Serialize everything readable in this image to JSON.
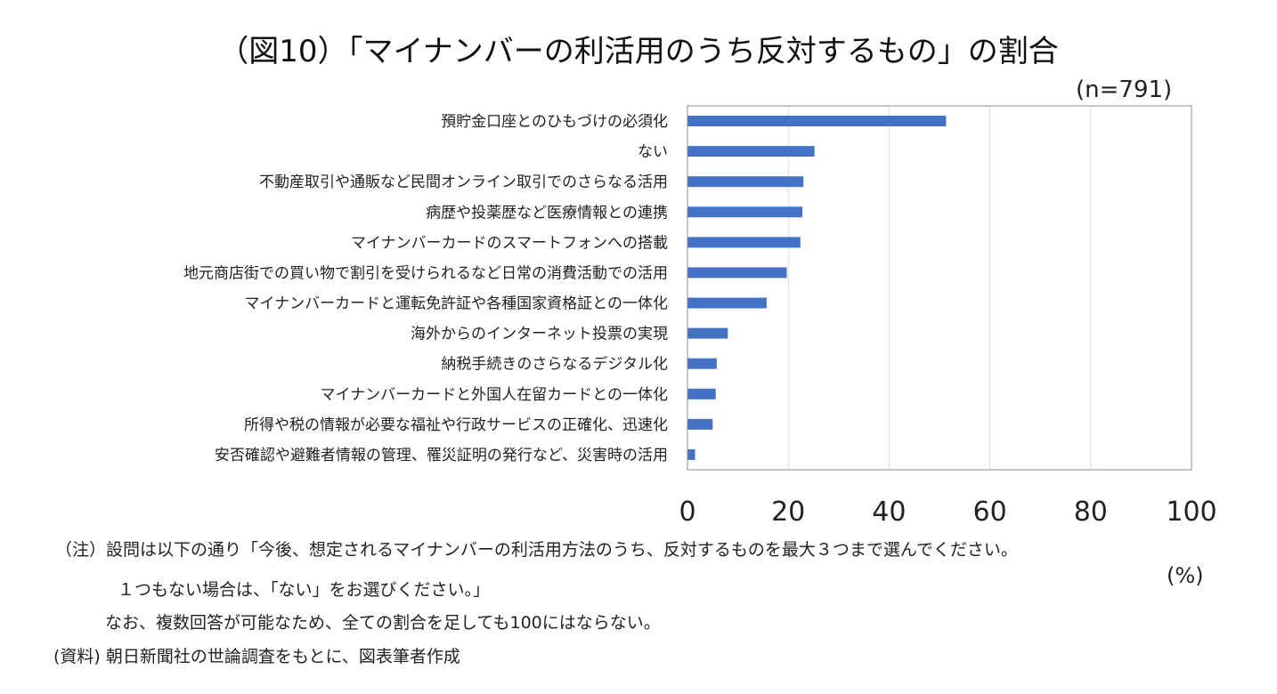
{
  "header": {
    "title": "（図10）「マイナンバーの利活用のうち反対するもの」の割合",
    "sample_size": "(n=791)"
  },
  "chart_data": {
    "type": "bar",
    "orientation": "horizontal",
    "categories": [
      "預貯金口座とのひもづけの必須化",
      "ない",
      "不動産取引や通販など民間オンライン取引でのさらなる活用",
      "病歴や投薬歴など医療情報との連携",
      "マイナンバーカードのスマートフォンへの搭載",
      "地元商店街での買い物で割引を受けられるなど日常の消費活動での活用",
      "マイナンバーカードと運転免許証や各種国家資格証との一体化",
      "海外からのインターネット投票の実現",
      "納税手続きのさらなるデジタル化",
      "マイナンバーカードと外国人在留カードとの一体化",
      "所得や税の情報が必要な福祉や行政サービスの正確化、迅速化",
      "安否確認や避難者情報の管理、罹災証明の発行など、災害時の活用"
    ],
    "values": [
      51.3,
      25.2,
      23.0,
      22.8,
      22.4,
      19.7,
      15.7,
      8.0,
      5.8,
      5.6,
      5.0,
      1.5
    ],
    "x_ticks": [
      "0",
      "20",
      "40",
      "60",
      "80",
      "100"
    ],
    "xlim": [
      0,
      100
    ],
    "xlabel": "(%)",
    "bar_color": "#4472c4",
    "grid": "vertical",
    "legend": "none"
  },
  "notes": [
    "（注）設問は以下の通り「今後、想定されるマイナンバーの利活用方法のうち、反対するものを最大３つまで選んでください。",
    "１つもない場合は、「ない」をお選びください。」",
    "なお、複数回答が可能なため、全ての割合を足しても100にはならない。",
    "(資料) 朝日新聞社の世論調査をもとに、図表筆者作成"
  ]
}
